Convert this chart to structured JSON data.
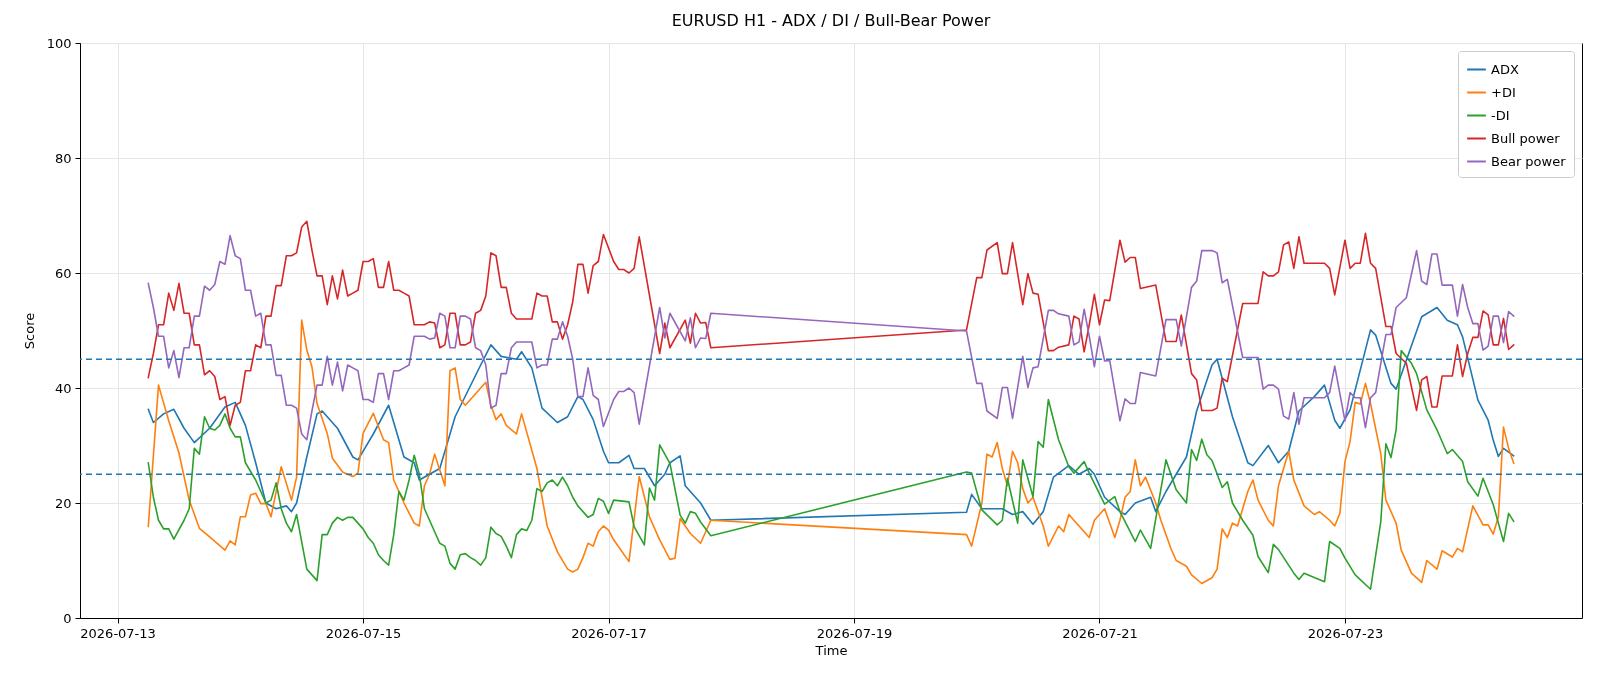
{
  "chart_data": {
    "type": "line",
    "title": "EURUSD H1 - ADX / DI / Bull-Bear Power",
    "xlabel": "Time",
    "ylabel": "Score",
    "xlim": [
      "2026-07-12T16:39",
      "2026-07-24T22:21"
    ],
    "xticks": [
      "2026-07-13",
      "2026-07-15",
      "2026-07-17",
      "2026-07-19",
      "2026-07-21",
      "2026-07-23"
    ],
    "ylim": [
      0,
      100
    ],
    "yticks": [
      0,
      20,
      40,
      60,
      80,
      100
    ],
    "grid": true,
    "legend": "top right",
    "ref_lines": [
      {
        "axis": "y",
        "value": 45,
        "color": "#1f77b4",
        "line_style": "dashed"
      },
      {
        "axis": "y",
        "value": 25,
        "color": "#1f77b4",
        "line_style": "dashed"
      }
    ],
    "x": [
      "2026-07-13T06:00",
      "2026-07-13T07:00",
      "2026-07-13T08:00",
      "2026-07-13T09:00",
      "2026-07-13T10:00",
      "2026-07-13T11:00",
      "2026-07-13T12:00",
      "2026-07-13T13:00",
      "2026-07-13T14:00",
      "2026-07-13T15:00",
      "2026-07-13T16:00",
      "2026-07-13T17:00",
      "2026-07-13T18:00",
      "2026-07-13T19:00",
      "2026-07-13T20:00",
      "2026-07-13T21:00",
      "2026-07-13T22:00",
      "2026-07-13T23:00",
      "2026-07-14T00:00",
      "2026-07-14T01:00",
      "2026-07-14T02:00",
      "2026-07-14T03:00",
      "2026-07-14T04:00",
      "2026-07-14T05:00",
      "2026-07-14T06:00",
      "2026-07-14T07:00",
      "2026-07-14T08:00",
      "2026-07-14T09:00",
      "2026-07-14T10:00",
      "2026-07-14T11:00",
      "2026-07-14T12:00",
      "2026-07-14T13:00",
      "2026-07-14T14:00",
      "2026-07-14T15:00",
      "2026-07-14T16:00",
      "2026-07-14T17:00",
      "2026-07-14T18:00",
      "2026-07-14T19:00",
      "2026-07-14T20:00",
      "2026-07-14T21:00",
      "2026-07-14T22:00",
      "2026-07-14T23:00",
      "2026-07-15T00:00",
      "2026-07-15T01:00",
      "2026-07-15T02:00",
      "2026-07-15T03:00",
      "2026-07-15T04:00",
      "2026-07-15T05:00",
      "2026-07-15T06:00",
      "2026-07-15T07:00",
      "2026-07-15T08:00",
      "2026-07-15T09:00",
      "2026-07-15T10:00",
      "2026-07-15T11:00",
      "2026-07-15T12:00",
      "2026-07-15T13:00",
      "2026-07-15T14:00",
      "2026-07-15T15:00",
      "2026-07-15T16:00",
      "2026-07-15T17:00",
      "2026-07-15T18:00",
      "2026-07-15T19:00",
      "2026-07-15T20:00",
      "2026-07-15T21:00",
      "2026-07-15T22:00",
      "2026-07-15T23:00",
      "2026-07-16T00:00",
      "2026-07-16T01:00",
      "2026-07-16T02:00",
      "2026-07-16T03:00",
      "2026-07-16T04:00",
      "2026-07-16T05:00",
      "2026-07-16T06:00",
      "2026-07-16T07:00",
      "2026-07-16T08:00",
      "2026-07-16T09:00",
      "2026-07-16T10:00",
      "2026-07-16T11:00",
      "2026-07-16T12:00",
      "2026-07-16T13:00",
      "2026-07-16T14:00",
      "2026-07-16T15:00",
      "2026-07-16T16:00",
      "2026-07-16T17:00",
      "2026-07-16T18:00",
      "2026-07-16T19:00",
      "2026-07-16T20:00",
      "2026-07-16T21:00",
      "2026-07-16T22:00",
      "2026-07-16T23:00",
      "2026-07-17T01:00",
      "2026-07-17T02:00",
      "2026-07-17T03:00",
      "2026-07-17T04:00",
      "2026-07-17T05:00",
      "2026-07-17T06:00",
      "2026-07-17T10:00",
      "2026-07-17T11:00",
      "2026-07-17T12:00",
      "2026-07-17T15:00",
      "2026-07-17T16:00",
      "2026-07-17T17:00",
      "2026-07-17T18:00",
      "2026-07-17T19:00",
      "2026-07-17T20:00",
      "2026-07-19T22:00",
      "2026-07-20T00:00",
      "2026-07-20T01:00",
      "2026-07-20T02:00",
      "2026-07-20T04:00",
      "2026-07-20T05:00",
      "2026-07-20T06:00",
      "2026-07-20T07:00",
      "2026-07-20T09:00",
      "2026-07-20T10:00",
      "2026-07-20T11:00",
      "2026-07-20T12:00",
      "2026-07-20T14:00",
      "2026-07-20T15:00",
      "2026-07-20T16:00",
      "2026-07-20T18:00",
      "2026-07-20T19:00",
      "2026-07-20T20:00",
      "2026-07-20T21:00",
      "2026-07-20T22:00",
      "2026-07-20T23:00",
      "2026-07-21T00:00",
      "2026-07-21T01:00",
      "2026-07-21T02:00",
      "2026-07-21T04:00",
      "2026-07-21T05:00",
      "2026-07-21T06:00",
      "2026-07-21T07:00",
      "2026-07-21T08:00",
      "2026-07-21T11:00",
      "2026-07-21T13:00",
      "2026-07-21T15:00",
      "2026-07-21T16:00",
      "2026-07-21T18:00",
      "2026-07-21T19:00",
      "2026-07-21T20:00",
      "2026-07-21T22:00",
      "2026-07-21T23:00",
      "2026-07-22T00:00",
      "2026-07-22T01:00",
      "2026-07-22T04:00",
      "2026-07-22T07:00",
      "2026-07-22T08:00",
      "2026-07-22T09:00",
      "2026-07-22T10:00",
      "2026-07-22T11:00",
      "2026-07-22T12:00",
      "2026-07-22T13:00",
      "2026-07-22T14:00",
      "2026-07-22T15:00",
      "2026-07-22T16:00",
      "2026-07-22T20:00",
      "2026-07-22T21:00",
      "2026-07-22T22:00",
      "2026-07-23T00:00",
      "2026-07-23T01:00",
      "2026-07-23T02:00",
      "2026-07-23T03:00",
      "2026-07-23T04:00",
      "2026-07-23T05:00",
      "2026-07-23T06:00",
      "2026-07-23T08:00",
      "2026-07-23T09:00",
      "2026-07-23T10:00",
      "2026-07-23T12:00",
      "2026-07-23T14:00",
      "2026-07-23T15:00",
      "2026-07-23T16:00",
      "2026-07-23T17:00",
      "2026-07-23T18:00",
      "2026-07-23T19:00",
      "2026-07-23T21:00",
      "2026-07-23T22:00",
      "2026-07-23T23:00",
      "2026-07-24T00:00",
      "2026-07-24T01:00",
      "2026-07-24T02:00",
      "2026-07-24T03:00",
      "2026-07-24T04:00",
      "2026-07-24T05:00",
      "2026-07-24T06:00",
      "2026-07-24T07:00",
      "2026-07-24T08:00",
      "2026-07-24T09:00"
    ],
    "series": [
      {
        "name": "ADX",
        "color": "#1f77b4",
        "x": [
          "2026-07-13T06:00",
          "2026-07-13T07:00",
          "2026-07-13T09:00",
          "2026-07-13T11:00",
          "2026-07-13T13:00",
          "2026-07-13T15:00",
          "2026-07-13T18:00",
          "2026-07-13T21:00",
          "2026-07-13T23:00",
          "2026-07-14T01:00",
          "2026-07-14T03:00",
          "2026-07-14T05:00",
          "2026-07-14T07:00",
          "2026-07-14T09:00",
          "2026-07-14T10:00",
          "2026-07-14T11:00",
          "2026-07-14T13:00",
          "2026-07-14T15:00",
          "2026-07-14T16:00",
          "2026-07-14T19:00",
          "2026-07-14T22:00",
          "2026-07-14T23:00",
          "2026-07-15T02:00",
          "2026-07-15T05:00",
          "2026-07-15T08:00",
          "2026-07-15T10:00",
          "2026-07-15T11:00",
          "2026-07-15T15:00",
          "2026-07-15T18:00",
          "2026-07-15T23:00",
          "2026-07-16T01:00",
          "2026-07-16T03:00",
          "2026-07-16T06:00",
          "2026-07-16T07:00",
          "2026-07-16T09:00",
          "2026-07-16T11:00",
          "2026-07-16T14:00",
          "2026-07-16T16:00",
          "2026-07-16T18:00",
          "2026-07-16T19:00",
          "2026-07-16T21:00",
          "2026-07-16T23:00",
          "2026-07-17T00:00",
          "2026-07-17T02:00",
          "2026-07-17T04:00",
          "2026-07-17T05:00",
          "2026-07-17T07:00",
          "2026-07-17T09:00",
          "2026-07-17T11:00",
          "2026-07-17T12:00",
          "2026-07-17T14:00",
          "2026-07-17T15:00",
          "2026-07-17T18:00",
          "2026-07-17T20:00",
          "2026-07-19T22:00",
          "2026-07-19T23:00",
          "2026-07-20T01:00",
          "2026-07-20T03:00",
          "2026-07-20T05:00",
          "2026-07-20T07:00",
          "2026-07-20T09:00",
          "2026-07-20T11:00",
          "2026-07-20T13:00",
          "2026-07-20T15:00",
          "2026-07-20T18:00",
          "2026-07-20T20:00",
          "2026-07-20T22:00",
          "2026-07-20T23:00",
          "2026-07-21T01:00",
          "2026-07-21T04:00",
          "2026-07-21T05:00",
          "2026-07-21T07:00",
          "2026-07-21T10:00",
          "2026-07-21T11:00",
          "2026-07-21T13:00",
          "2026-07-21T17:00",
          "2026-07-21T19:00",
          "2026-07-21T22:00",
          "2026-07-21T23:00",
          "2026-07-22T02:00",
          "2026-07-22T05:00",
          "2026-07-22T06:00",
          "2026-07-22T09:00",
          "2026-07-22T11:00",
          "2026-07-22T13:00",
          "2026-07-22T15:00",
          "2026-07-22T18:00",
          "2026-07-22T20:00",
          "2026-07-22T22:00",
          "2026-07-22T23:00",
          "2026-07-23T01:00",
          "2026-07-23T05:00",
          "2026-07-23T06:00",
          "2026-07-23T09:00",
          "2026-07-23T10:00",
          "2026-07-23T15:00",
          "2026-07-23T18:00",
          "2026-07-23T20:00",
          "2026-07-23T22:00",
          "2026-07-23T23:00",
          "2026-07-24T02:00",
          "2026-07-24T04:00",
          "2026-07-24T05:00",
          "2026-07-24T06:00",
          "2026-07-24T07:00",
          "2026-07-24T09:00"
        ],
        "values": [
          36.3,
          34,
          35.5,
          36.3,
          33,
          30.5,
          33,
          36.7,
          37.5,
          33.5,
          27,
          20,
          19,
          19.5,
          18.5,
          20,
          28,
          35.5,
          36,
          33,
          28,
          27.5,
          32,
          37,
          28,
          27,
          24,
          26,
          35,
          44,
          47.5,
          45.5,
          45,
          46.3,
          43.5,
          36.5,
          34,
          35,
          38.5,
          38,
          34.5,
          29,
          27,
          27,
          28.3,
          26,
          26,
          23,
          25,
          27,
          28.2,
          23,
          20,
          17,
          18.4,
          21.5,
          19,
          19,
          19,
          18,
          18.5,
          16.3,
          18.5,
          24.5,
          26.5,
          25,
          26,
          25,
          21,
          18.5,
          18,
          20,
          21,
          18.5,
          22,
          28,
          36,
          44,
          45,
          35,
          27,
          26.5,
          30,
          27,
          29,
          36,
          38.5,
          40.5,
          34.4,
          33,
          36.2,
          50.1,
          49.2,
          40.8,
          39.8,
          52.4,
          54,
          51.8,
          51,
          48.9,
          37.9,
          34.4,
          30.9,
          28.1,
          29.5,
          28.2
        ]
      },
      {
        "name": "+DI",
        "color": "#ff7f0e",
        "x": [
          "2026-07-13T06:00",
          "2026-07-13T08:00",
          "2026-07-13T10:00",
          "2026-07-13T12:00",
          "2026-07-13T14:00",
          "2026-07-13T16:00",
          "2026-07-13T18:00",
          "2026-07-13T21:00",
          "2026-07-13T22:00",
          "2026-07-13T23:00",
          "2026-07-14T00:00",
          "2026-07-14T01:00",
          "2026-07-14T02:00",
          "2026-07-14T03:00",
          "2026-07-14T04:00",
          "2026-07-14T05:00",
          "2026-07-14T06:00",
          "2026-07-14T08:00",
          "2026-07-14T10:00",
          "2026-07-14T11:00",
          "2026-07-14T12:00",
          "2026-07-14T13:00",
          "2026-07-14T14:00",
          "2026-07-14T15:00",
          "2026-07-14T17:00",
          "2026-07-14T18:00",
          "2026-07-14T20:00",
          "2026-07-14T22:00",
          "2026-07-14T23:00",
          "2026-07-15T00:00",
          "2026-07-15T02:00",
          "2026-07-15T04:00",
          "2026-07-15T05:00",
          "2026-07-15T06:00",
          "2026-07-15T08:00",
          "2026-07-15T10:00",
          "2026-07-15T11:00",
          "2026-07-15T12:00",
          "2026-07-15T13:00",
          "2026-07-15T14:00",
          "2026-07-15T16:00",
          "2026-07-15T17:00",
          "2026-07-15T18:00",
          "2026-07-15T19:00",
          "2026-07-15T20:00",
          "2026-07-15T22:00",
          "2026-07-16T00:00",
          "2026-07-16T01:00",
          "2026-07-16T02:00",
          "2026-07-16T03:00",
          "2026-07-16T04:00",
          "2026-07-16T06:00",
          "2026-07-16T07:00",
          "2026-07-16T10:00",
          "2026-07-16T12:00",
          "2026-07-16T14:00",
          "2026-07-16T16:00",
          "2026-07-16T17:00",
          "2026-07-16T18:00",
          "2026-07-16T19:00",
          "2026-07-16T20:00",
          "2026-07-16T21:00",
          "2026-07-16T22:00",
          "2026-07-16T23:00",
          "2026-07-17T00:00",
          "2026-07-17T01:00",
          "2026-07-17T04:00",
          "2026-07-17T06:00",
          "2026-07-17T08:00",
          "2026-07-17T10:00",
          "2026-07-17T12:00",
          "2026-07-17T13:00",
          "2026-07-17T14:00",
          "2026-07-17T16:00",
          "2026-07-17T18:00",
          "2026-07-17T20:00",
          "2026-07-19T22:00",
          "2026-07-19T23:00",
          "2026-07-20T01:00",
          "2026-07-20T02:00",
          "2026-07-20T03:00",
          "2026-07-20T04:00",
          "2026-07-20T05:00",
          "2026-07-20T06:00",
          "2026-07-20T07:00",
          "2026-07-20T08:00",
          "2026-07-20T09:00",
          "2026-07-20T10:00",
          "2026-07-20T11:00",
          "2026-07-20T13:00",
          "2026-07-20T14:00",
          "2026-07-20T16:00",
          "2026-07-20T17:00",
          "2026-07-20T18:00",
          "2026-07-20T20:00",
          "2026-07-20T22:00",
          "2026-07-20T23:00",
          "2026-07-21T01:00",
          "2026-07-21T03:00",
          "2026-07-21T04:00",
          "2026-07-21T05:00",
          "2026-07-21T06:00",
          "2026-07-21T07:00",
          "2026-07-21T08:00",
          "2026-07-21T09:00",
          "2026-07-21T11:00",
          "2026-07-21T12:00",
          "2026-07-21T14:00",
          "2026-07-21T15:00",
          "2026-07-21T17:00",
          "2026-07-21T18:00",
          "2026-07-21T20:00",
          "2026-07-21T22:00",
          "2026-07-21T23:00",
          "2026-07-22T00:00",
          "2026-07-22T01:00",
          "2026-07-22T02:00",
          "2026-07-22T03:00",
          "2026-07-22T05:00",
          "2026-07-22T06:00",
          "2026-07-22T07:00",
          "2026-07-22T09:00",
          "2026-07-22T10:00",
          "2026-07-22T11:00",
          "2026-07-22T13:00",
          "2026-07-22T14:00",
          "2026-07-22T16:00",
          "2026-07-22T18:00",
          "2026-07-22T19:00",
          "2026-07-22T21:00",
          "2026-07-22T22:00",
          "2026-07-22T23:00",
          "2026-07-23T00:00",
          "2026-07-23T01:00",
          "2026-07-23T02:00",
          "2026-07-23T03:00",
          "2026-07-23T04:00",
          "2026-07-23T05:00",
          "2026-07-23T07:00",
          "2026-07-23T08:00",
          "2026-07-23T10:00",
          "2026-07-23T11:00",
          "2026-07-23T13:00",
          "2026-07-23T15:00",
          "2026-07-23T16:00",
          "2026-07-23T18:00",
          "2026-07-23T19:00",
          "2026-07-23T21:00",
          "2026-07-23T22:00",
          "2026-07-23T23:00",
          "2026-07-24T01:00",
          "2026-07-24T03:00",
          "2026-07-24T04:00",
          "2026-07-24T05:00",
          "2026-07-24T06:00",
          "2026-07-24T07:00",
          "2026-07-24T08:00",
          "2026-07-24T09:00"
        ],
        "values": [
          15.9,
          40.5,
          34.3,
          28.7,
          20.5,
          15.6,
          14.1,
          11.8,
          13.4,
          12.7,
          17.6,
          17.6,
          21.4,
          21.7,
          19.9,
          19.9,
          17.6,
          26.3,
          20.5,
          24.5,
          51.8,
          46.6,
          43.7,
          37.3,
          32.1,
          27.8,
          25.4,
          24.6,
          25.2,
          32.1,
          35.6,
          31,
          30.5,
          24,
          20,
          16.5,
          16,
          23,
          25,
          28.5,
          23,
          43,
          43.5,
          38,
          37,
          39,
          41,
          37,
          34.5,
          35.5,
          33.5,
          32,
          35.5,
          26,
          16,
          11.5,
          8.5,
          8,
          8.5,
          10.5,
          13,
          12.5,
          15,
          16,
          15.3,
          13.6,
          9.8,
          24.6,
          17.6,
          13.6,
          10.2,
          10.4,
          17.3,
          14.7,
          13,
          17,
          14.5,
          12.5,
          20,
          28.5,
          28,
          30.5,
          26,
          23,
          29,
          27,
          22.5,
          20,
          21,
          16,
          12.5,
          16,
          15,
          18,
          16,
          14,
          17,
          19,
          14,
          17,
          21,
          22,
          27.5,
          23,
          24.5,
          20,
          17,
          12,
          10,
          9,
          7.5,
          6,
          7,
          8.5,
          15.5,
          14,
          16.5,
          16,
          22,
          24,
          20.5,
          17,
          16,
          23,
          29,
          24,
          19.5,
          18,
          18.5,
          17,
          16,
          18.2,
          27.2,
          30.7,
          37.5,
          37.2,
          40.8,
          37.3,
          28.6,
          20.5,
          16.5,
          11.8,
          7.8,
          6.2,
          10,
          8.5,
          11.7,
          10.6,
          12.1,
          11.5,
          19.5,
          16.2,
          16.2,
          14.6,
          17.6,
          33.2,
          29.5,
          26.9
        ]
      },
      {
        "name": "-DI",
        "color": "#2ca02c",
        "x": [
          "2026-07-13T06:00",
          "2026-07-13T07:00",
          "2026-07-13T08:00",
          "2026-07-13T09:00",
          "2026-07-13T10:00",
          "2026-07-13T11:00",
          "2026-07-13T13:00",
          "2026-07-13T14:00",
          "2026-07-13T15:00",
          "2026-07-13T16:00",
          "2026-07-13T17:00",
          "2026-07-13T18:00",
          "2026-07-13T19:00",
          "2026-07-13T20:00",
          "2026-07-13T21:00",
          "2026-07-13T22:00",
          "2026-07-13T23:00",
          "2026-07-14T00:00",
          "2026-07-14T01:00",
          "2026-07-14T03:00",
          "2026-07-14T05:00",
          "2026-07-14T06:00",
          "2026-07-14T07:00",
          "2026-07-14T08:00",
          "2026-07-14T09:00",
          "2026-07-14T10:00",
          "2026-07-14T11:00",
          "2026-07-14T13:00",
          "2026-07-14T14:00",
          "2026-07-14T15:00",
          "2026-07-14T16:00",
          "2026-07-14T17:00",
          "2026-07-14T18:00",
          "2026-07-14T19:00",
          "2026-07-14T20:00",
          "2026-07-14T21:00",
          "2026-07-14T22:00",
          "2026-07-14T23:00",
          "2026-07-15T00:00",
          "2026-07-15T01:00",
          "2026-07-15T02:00",
          "2026-07-15T03:00",
          "2026-07-15T04:00",
          "2026-07-15T05:00",
          "2026-07-15T06:00",
          "2026-07-15T07:00",
          "2026-07-15T08:00",
          "2026-07-15T09:00",
          "2026-07-15T10:00",
          "2026-07-15T11:00",
          "2026-07-15T12:00",
          "2026-07-15T14:00",
          "2026-07-15T15:00",
          "2026-07-15T16:00",
          "2026-07-15T17:00",
          "2026-07-15T18:00",
          "2026-07-15T19:00",
          "2026-07-15T20:00",
          "2026-07-15T21:00",
          "2026-07-15T22:00",
          "2026-07-15T23:00",
          "2026-07-16T00:00",
          "2026-07-16T01:00",
          "2026-07-16T02:00",
          "2026-07-16T03:00",
          "2026-07-16T04:00",
          "2026-07-16T05:00",
          "2026-07-16T06:00",
          "2026-07-16T07:00",
          "2026-07-16T08:00",
          "2026-07-16T09:00",
          "2026-07-16T10:00",
          "2026-07-16T11:00",
          "2026-07-16T12:00",
          "2026-07-16T13:00",
          "2026-07-16T14:00",
          "2026-07-16T15:00",
          "2026-07-16T16:00",
          "2026-07-16T17:00",
          "2026-07-16T18:00",
          "2026-07-16T19:00",
          "2026-07-16T20:00",
          "2026-07-16T21:00",
          "2026-07-16T22:00",
          "2026-07-16T23:00",
          "2026-07-17T00:00",
          "2026-07-17T01:00",
          "2026-07-17T04:00",
          "2026-07-17T05:00",
          "2026-07-17T07:00",
          "2026-07-17T08:00",
          "2026-07-17T09:00",
          "2026-07-17T10:00",
          "2026-07-17T12:00",
          "2026-07-17T14:00",
          "2026-07-17T15:00",
          "2026-07-17T16:00",
          "2026-07-17T17:00",
          "2026-07-17T18:00",
          "2026-07-17T20:00",
          "2026-07-19T22:00",
          "2026-07-19T23:00",
          "2026-07-20T01:00",
          "2026-07-20T04:00",
          "2026-07-20T05:00",
          "2026-07-20T06:00",
          "2026-07-20T08:00",
          "2026-07-20T09:00",
          "2026-07-20T11:00",
          "2026-07-20T12:00",
          "2026-07-20T13:00",
          "2026-07-20T14:00",
          "2026-07-20T16:00",
          "2026-07-20T18:00",
          "2026-07-20T19:00",
          "2026-07-20T21:00",
          "2026-07-20T22:00",
          "2026-07-21T01:00",
          "2026-07-21T03:00",
          "2026-07-21T04:00",
          "2026-07-21T07:00",
          "2026-07-21T08:00",
          "2026-07-21T10:00",
          "2026-07-21T13:00",
          "2026-07-21T15:00",
          "2026-07-21T17:00",
          "2026-07-21T18:00",
          "2026-07-21T19:00",
          "2026-07-21T20:00",
          "2026-07-21T21:00",
          "2026-07-21T22:00",
          "2026-07-22T00:00",
          "2026-07-22T01:00",
          "2026-07-22T02:00",
          "2026-07-22T04:00",
          "2026-07-22T06:00",
          "2026-07-22T07:00",
          "2026-07-22T09:00",
          "2026-07-22T10:00",
          "2026-07-22T11:00",
          "2026-07-22T14:00",
          "2026-07-22T15:00",
          "2026-07-22T16:00",
          "2026-07-22T20:00",
          "2026-07-22T21:00",
          "2026-07-22T23:00",
          "2026-07-23T00:00",
          "2026-07-23T02:00",
          "2026-07-23T05:00",
          "2026-07-23T07:00",
          "2026-07-23T08:00",
          "2026-07-23T09:00",
          "2026-07-23T10:00",
          "2026-07-23T11:00",
          "2026-07-23T13:00",
          "2026-07-23T14:00",
          "2026-07-23T16:00",
          "2026-07-23T18:00",
          "2026-07-23T20:00",
          "2026-07-23T21:00",
          "2026-07-23T23:00",
          "2026-07-24T00:00",
          "2026-07-24T02:00",
          "2026-07-24T03:00",
          "2026-07-24T05:00",
          "2026-07-24T07:00",
          "2026-07-24T08:00",
          "2026-07-24T09:00"
        ],
        "values": [
          27,
          21,
          17,
          15.5,
          15.5,
          13.7,
          17,
          19,
          29.5,
          28.5,
          35,
          33,
          32.7,
          33.5,
          35.5,
          33,
          31.5,
          31.5,
          27,
          24,
          20,
          20.5,
          23.5,
          19,
          16.5,
          15,
          18,
          8.5,
          7.5,
          6.5,
          14.5,
          14.5,
          16.5,
          17.5,
          17,
          17.5,
          17.5,
          16.5,
          15.5,
          14,
          13,
          11,
          10,
          9.2,
          14.5,
          22,
          20.5,
          24,
          28.3,
          25,
          19,
          15,
          13,
          12.5,
          9.5,
          8.5,
          11,
          11.2,
          10.5,
          10,
          9.2,
          10.5,
          15.8,
          14.7,
          14.2,
          12.5,
          10.5,
          14.5,
          15.5,
          15.2,
          17,
          22.5,
          22,
          23.5,
          24,
          23,
          24.5,
          23,
          21,
          19.5,
          18.5,
          17.5,
          18,
          20.8,
          20.3,
          18.2,
          20.5,
          20.2,
          15.9,
          12.7,
          22.6,
          20.5,
          30.1,
          26.9,
          17.9,
          16.5,
          18.5,
          18.2,
          16.7,
          14.3,
          25.4,
          25.2,
          18.8,
          16.2,
          17,
          24.3,
          16.5,
          27.5,
          21.1,
          30.7,
          29.7,
          38,
          31,
          26.3,
          25.2,
          27.2,
          25.2,
          19.8,
          21.1,
          18.5,
          13.3,
          15.3,
          12.1,
          27.5,
          22.3,
          20,
          29.3,
          27.4,
          31.1,
          28.4,
          27.4,
          22.7,
          23.7,
          20,
          17,
          14.4,
          10.7,
          7.9,
          12.8,
          11.9,
          7.8,
          6.7,
          7.8,
          6.3,
          13.3,
          12.1,
          10.4,
          7.5,
          5,
          16.7,
          30.3,
          27.9,
          32.7,
          46.5,
          44.3,
          42.5,
          36.2,
          32.7,
          28.6,
          29.3,
          27.2,
          23.7,
          21.2,
          24.3,
          19.7,
          13.3,
          18.2,
          16.8
        ]
      },
      {
        "name": "Bull power",
        "color": "#d62728",
        "values": [
          41.8,
          46,
          51,
          51,
          56.5,
          53.5,
          58.2,
          53,
          53,
          47.5,
          47.5,
          42.3,
          43,
          42,
          38,
          38.5,
          33.5,
          37,
          37.5,
          43,
          43,
          47.5,
          47,
          52.5,
          52.5,
          57.8,
          57.8,
          63,
          63,
          63.5,
          68,
          69,
          64,
          59.5,
          59.5,
          54.5,
          59.5,
          55.5,
          60.5,
          56,
          56.5,
          57,
          62,
          62,
          62.5,
          57.5,
          57.5,
          62,
          57,
          57,
          56.5,
          56,
          51,
          51,
          51,
          51.5,
          51.3,
          47,
          47.5,
          53,
          53,
          47.5,
          47.5,
          48,
          53,
          53.5,
          56,
          63.5,
          63,
          57.5,
          57.5,
          53,
          52,
          52,
          52,
          52,
          56.5,
          56,
          56,
          51.5,
          51.5,
          48.5,
          51,
          55,
          61.5,
          61.5,
          56.5,
          61.3,
          62,
          66.7,
          62,
          60.6,
          60.6,
          60,
          60.8,
          66.3,
          46,
          51.3,
          47,
          51.8,
          47.8,
          53,
          51.3,
          51.4,
          47,
          50.1,
          59.2,
          59.2,
          64,
          65.3,
          59.9,
          59.9,
          65.3,
          54.5,
          59.9,
          56.5,
          56.3,
          46.5,
          46.5,
          47.1,
          47.5,
          52.5,
          52,
          46.3,
          51,
          56.3,
          51,
          55.3,
          55.2,
          65.7,
          61.9,
          62.7,
          62.7,
          57.3,
          57.9,
          48.1,
          48.1,
          52.7,
          42.5,
          41.4,
          36.1,
          36.1,
          36.5,
          41.7,
          41.1,
          54.7,
          54.7,
          60.2,
          59.5,
          59.5,
          60.2,
          64.9,
          65.4,
          60.8,
          66.3,
          61.7,
          61.7,
          60.8,
          56.2,
          65.7,
          60.8,
          61.7,
          61.7,
          66.9,
          61.7,
          60.8,
          50.7,
          50.7,
          46,
          44.3,
          36.1,
          41.4,
          42,
          36.7,
          36.7,
          42.1,
          42.1,
          47.5,
          42,
          46,
          48.8,
          48.8,
          53.4,
          52.7,
          47.5,
          47.5,
          52.1,
          46.7,
          47.5
        ]
      },
      {
        "name": "Bear power",
        "color": "#9467bd",
        "values": [
          58.2,
          54,
          49,
          49,
          43.5,
          46.5,
          41.8,
          47,
          47,
          52.5,
          52.5,
          57.7,
          57,
          58,
          62,
          61.5,
          66.5,
          63,
          62.5,
          57,
          57,
          52.5,
          53,
          47.5,
          47.5,
          42.2,
          42.2,
          37,
          37,
          36.5,
          32,
          31,
          36,
          40.5,
          40.5,
          45.5,
          40.5,
          44.5,
          39.5,
          44,
          43.5,
          43,
          38,
          38,
          37.5,
          42.5,
          42.5,
          38,
          43,
          43,
          43.5,
          44,
          49,
          49,
          49,
          48.5,
          48.7,
          53,
          52.5,
          47,
          47,
          52.5,
          52.5,
          52,
          47,
          46.5,
          44,
          36.5,
          37,
          42.5,
          42.5,
          47,
          48,
          48,
          48,
          48,
          43.5,
          44,
          44,
          48.5,
          48.5,
          51.5,
          49,
          45,
          38.5,
          38.5,
          43.5,
          38.7,
          38,
          33.3,
          38,
          39.4,
          39.4,
          40,
          39.2,
          33.7,
          54,
          48.7,
          53,
          48.2,
          52.2,
          47,
          48.7,
          48.6,
          53,
          49.9,
          40.8,
          40.8,
          36,
          34.7,
          40.1,
          40.1,
          34.7,
          45.5,
          40.1,
          43.5,
          43.7,
          53.5,
          53.5,
          52.9,
          52.5,
          47.5,
          48,
          53.7,
          49,
          43.7,
          49,
          44.7,
          44.8,
          34.3,
          38.1,
          37.3,
          37.3,
          42.7,
          42.1,
          51.9,
          51.9,
          47.3,
          57.5,
          58.6,
          63.9,
          63.9,
          63.5,
          58.3,
          58.9,
          45.3,
          45.3,
          39.8,
          40.5,
          40.5,
          39.8,
          35.1,
          34.6,
          39.2,
          33.7,
          38.3,
          38.3,
          39.2,
          43.8,
          34.3,
          39.2,
          38.3,
          38.3,
          33.1,
          38.3,
          39.2,
          49.3,
          49.3,
          54,
          55.7,
          63.9,
          58.6,
          58,
          63.3,
          63.3,
          57.9,
          57.9,
          52.5,
          58,
          54,
          51.2,
          51.2,
          46.6,
          47.3,
          52.5,
          52.5,
          47.9,
          53.3,
          52.5
        ]
      }
    ]
  }
}
